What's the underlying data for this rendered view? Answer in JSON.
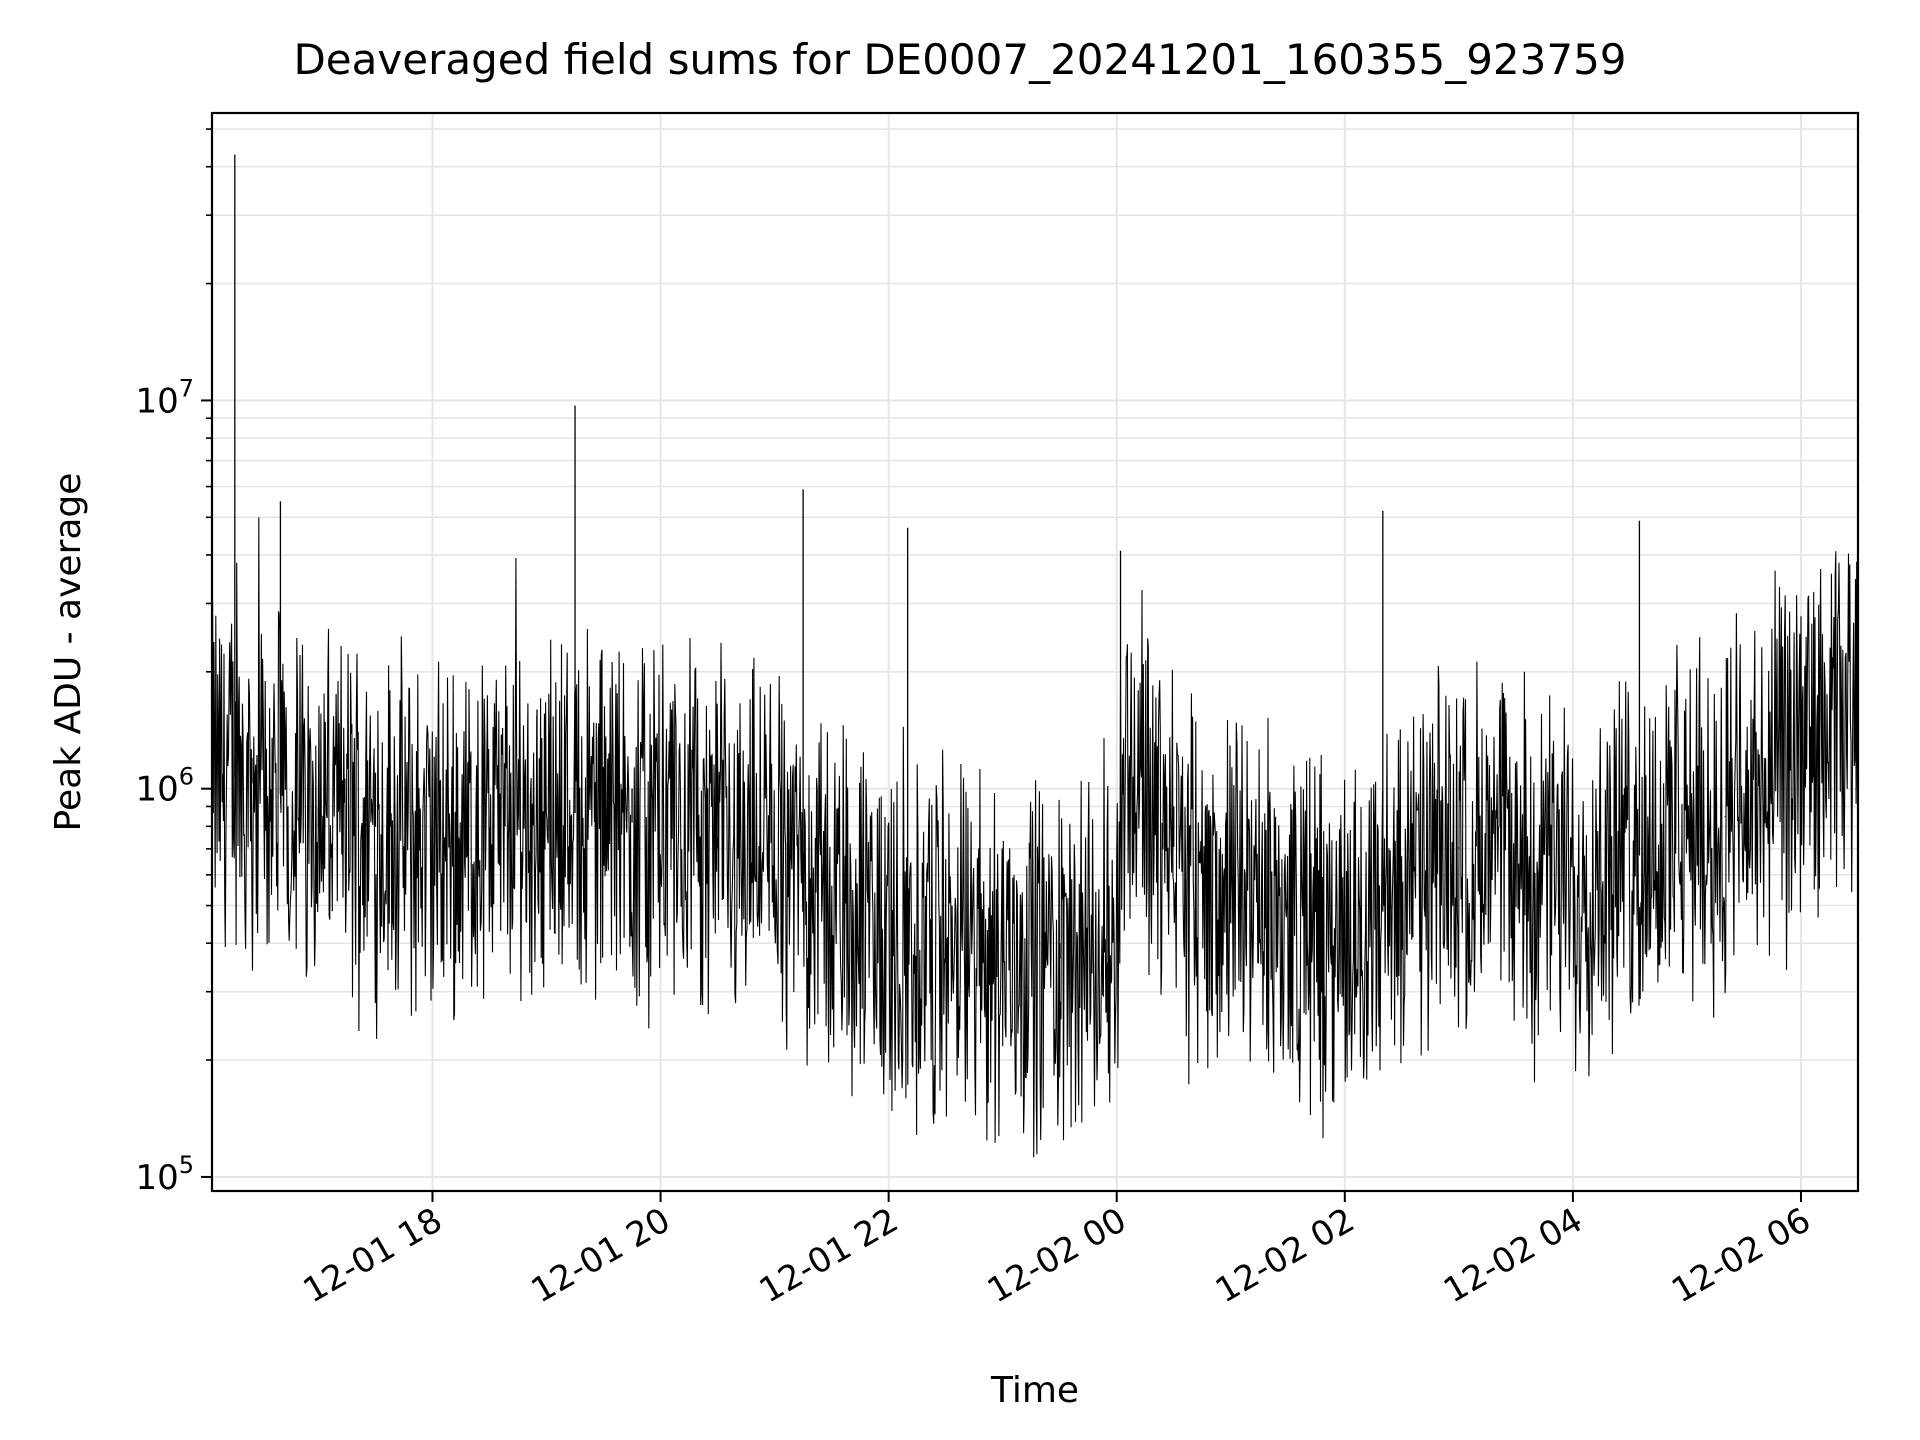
{
  "chart_data": {
    "type": "line",
    "title": "Deaveraged field sums for DE0007_20241201_160355_923759",
    "xlabel": "Time",
    "ylabel": "Peak ADU - average",
    "yscale": "log",
    "ylim": [
      92000,
      55000000
    ],
    "xlim": [
      "2024-12-01 16:04",
      "2024-12-02 06:30"
    ],
    "x_ticks": [
      "12-01 18",
      "12-01 20",
      "12-01 22",
      "12-02 00",
      "12-02 02",
      "12-02 04",
      "12-02 06"
    ],
    "y_ticks": [
      {
        "value": 100000,
        "base": "10",
        "exp": "5"
      },
      {
        "value": 1000000,
        "base": "10",
        "exp": "6"
      },
      {
        "value": 10000000,
        "base": "10",
        "exp": "7"
      }
    ],
    "grid": true,
    "line_color": "#000000",
    "series": [
      {
        "points": [
          [
            "2024-12-01 16:04",
            2500000
          ],
          [
            "2024-12-01 16:10",
            900000
          ],
          [
            "2024-12-01 16:16",
            43000000
          ],
          [
            "2024-12-01 16:25",
            1200000
          ],
          [
            "2024-12-01 16:40",
            5500000
          ],
          [
            "2024-12-01 17:00",
            800000
          ],
          [
            "2024-12-01 17:30",
            1100000
          ],
          [
            "2024-12-01 18:00",
            700000
          ],
          [
            "2024-12-01 18:30",
            500000
          ],
          [
            "2024-12-01 18:55",
            1600000
          ],
          [
            "2024-12-01 19:15",
            9700000
          ],
          [
            "2024-12-01 19:45",
            1000000
          ],
          [
            "2024-12-01 20:30",
            700000
          ],
          [
            "2024-12-01 21:15",
            5900000
          ],
          [
            "2024-12-01 21:45",
            600000
          ],
          [
            "2024-12-01 22:10",
            4700000
          ],
          [
            "2024-12-01 22:50",
            500000
          ],
          [
            "2024-12-01 23:30",
            400000
          ],
          [
            "2024-12-01 23:55",
            250000
          ],
          [
            "2024-12-02 00:02",
            4100000
          ],
          [
            "2024-12-02 00:30",
            900000
          ],
          [
            "2024-12-02 01:00",
            450000
          ],
          [
            "2024-12-02 01:40",
            350000
          ],
          [
            "2024-12-02 02:20",
            5200000
          ],
          [
            "2024-12-02 03:00",
            700000
          ],
          [
            "2024-12-02 03:40",
            550000
          ],
          [
            "2024-12-02 04:20",
            650000
          ],
          [
            "2024-12-02 04:35",
            4900000
          ],
          [
            "2024-12-02 05:20",
            850000
          ],
          [
            "2024-12-02 06:00",
            1300000
          ],
          [
            "2024-12-02 06:30",
            2200000
          ]
        ]
      }
    ]
  }
}
